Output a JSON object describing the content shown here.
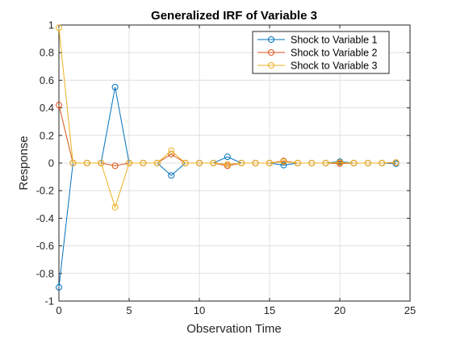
{
  "chart_data": {
    "type": "line",
    "title": "Generalized IRF of Variable 3",
    "xlabel": "Observation Time",
    "ylabel": "Response",
    "xlim": [
      0,
      25
    ],
    "ylim": [
      -1,
      1
    ],
    "xticks": [
      0,
      5,
      10,
      15,
      20,
      25
    ],
    "yticks": [
      -1,
      -0.8,
      -0.6,
      -0.4,
      -0.2,
      0,
      0.2,
      0.4,
      0.6,
      0.8,
      1
    ],
    "xtick_labels": [
      "0",
      "5",
      "10",
      "15",
      "20",
      "25"
    ],
    "ytick_labels": [
      "-1",
      "-0.8",
      "-0.6",
      "-0.4",
      "-0.2",
      "0",
      "0.2",
      "0.4",
      "0.6",
      "0.8",
      "1"
    ],
    "grid": true,
    "legend_position": "top-right",
    "x": [
      0,
      1,
      2,
      3,
      4,
      5,
      6,
      7,
      8,
      9,
      10,
      11,
      12,
      13,
      14,
      15,
      16,
      17,
      18,
      19,
      20,
      21,
      22,
      23,
      24
    ],
    "series": [
      {
        "name": "Shock to Variable 1",
        "color": "#0072BD",
        "values": [
          -0.9,
          0,
          0,
          0,
          0.55,
          0,
          0,
          0,
          -0.09,
          0,
          0,
          0,
          0.045,
          0,
          0,
          0,
          -0.015,
          0,
          0,
          0,
          0.01,
          0,
          0,
          0,
          -0.005
        ]
      },
      {
        "name": "Shock to Variable 2",
        "color": "#D95319",
        "values": [
          0.42,
          0,
          0,
          0,
          -0.02,
          0,
          0,
          0,
          0.065,
          0,
          0,
          0,
          -0.02,
          0,
          0,
          0,
          0.015,
          0,
          0,
          0,
          -0.004,
          0,
          0,
          0,
          0.004
        ]
      },
      {
        "name": "Shock to Variable 3",
        "color": "#EDB120",
        "values": [
          0.98,
          0,
          0,
          0,
          -0.32,
          0,
          0,
          0,
          0.09,
          0,
          0,
          0,
          -0.01,
          0,
          0,
          0,
          0.01,
          0,
          0,
          0,
          0.004,
          0,
          0,
          0,
          0.002
        ]
      }
    ]
  }
}
